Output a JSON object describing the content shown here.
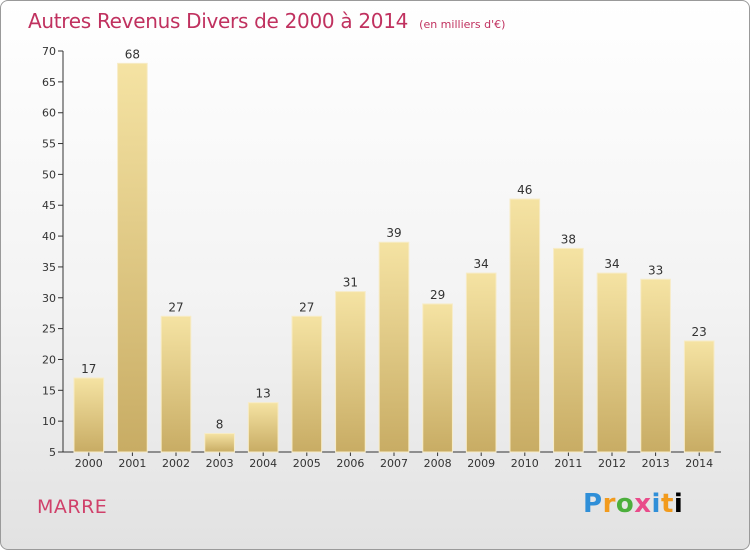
{
  "chart_data": {
    "type": "bar",
    "title": "Autres Revenus Divers de 2000 à 2014",
    "subtitle": "(en milliers d'€)",
    "categories": [
      "2000",
      "2001",
      "2002",
      "2003",
      "2004",
      "2005",
      "2006",
      "2007",
      "2008",
      "2009",
      "2010",
      "2011",
      "2012",
      "2013",
      "2014"
    ],
    "values": [
      17,
      68,
      27,
      8,
      13,
      27,
      31,
      39,
      29,
      34,
      46,
      38,
      34,
      33,
      23
    ],
    "ylim": [
      5,
      70
    ],
    "yticks": [
      5,
      10,
      15,
      20,
      25,
      30,
      35,
      40,
      45,
      50,
      55,
      60,
      65,
      70
    ],
    "grid": false,
    "bar_color": "#e8cf86"
  },
  "footer": {
    "commune": "MARRE",
    "logo": [
      "P",
      "r",
      "o",
      "x",
      "i",
      "t",
      "i"
    ]
  }
}
